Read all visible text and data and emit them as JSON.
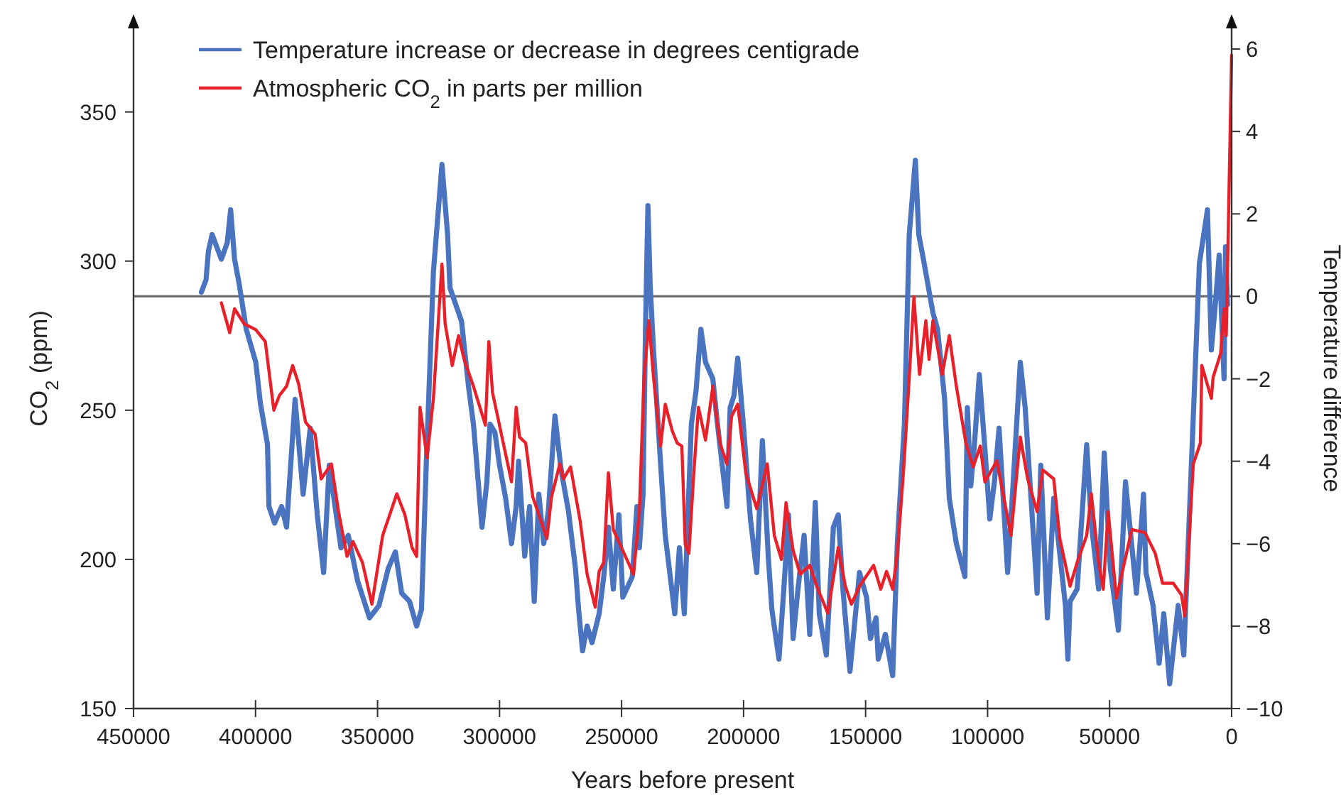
{
  "chart_data": {
    "type": "line",
    "xlabel": "Years before present",
    "ylabel": "CO$_{2}$ (ppm)",
    "y2label": "Temperature difference",
    "xlim": [
      450000,
      0
    ],
    "xticks": [
      450000,
      400000,
      350000,
      300000,
      250000,
      200000,
      150000,
      100000,
      50000,
      0
    ],
    "ylim": [
      150,
      378
    ],
    "yticks": [
      150,
      200,
      250,
      300,
      350
    ],
    "y2lim": [
      -10,
      6.5
    ],
    "y2ticks": [
      {
        "value": -10,
        "label": "−10"
      },
      {
        "value": -8,
        "label": "−8"
      },
      {
        "value": -6,
        "label": "−6"
      },
      {
        "value": -4,
        "label": "−4"
      },
      {
        "value": -2,
        "label": "−2"
      },
      0,
      2,
      4,
      6
    ],
    "legend": "top left",
    "grid": false,
    "marker": "none",
    "line_style": "solid",
    "ref_lines": [
      {
        "axis": "y2",
        "value": 0,
        "color": "#6d6d6d"
      }
    ],
    "series": [
      {
        "name": "Temperature increase or decrease in degrees centigrade",
        "color": "#4a74c0",
        "axis": "y2",
        "x": [
          422200,
          420300,
          419300,
          417800,
          414000,
          411600,
          410200,
          408600,
          406700,
          403800,
          399900,
          398000,
          395100,
          394500,
          392200,
          389300,
          387300,
          383800,
          380500,
          377600,
          374700,
          372100,
          369800,
          365000,
          362000,
          358200,
          353300,
          349400,
          345600,
          342700,
          340100,
          336900,
          334000,
          332000,
          330000,
          327100,
          323600,
          321300,
          320300,
          315600,
          312700,
          310700,
          307200,
          305200,
          303900,
          301900,
          300000,
          297500,
          295100,
          293200,
          292200,
          289700,
          287700,
          285800,
          283900,
          281900,
          280000,
          277300,
          274800,
          271800,
          268900,
          267600,
          266000,
          264100,
          262100,
          259200,
          257300,
          255400,
          253400,
          251100,
          249500,
          245600,
          243700,
          242700,
          241200,
          240200,
          239200,
          238300,
          236900,
          234400,
          232100,
          228200,
          226300,
          224300,
          221400,
          219500,
          217500,
          215600,
          212600,
          210700,
          206800,
          205500,
          203900,
          202400,
          200100,
          197200,
          194600,
          192300,
          189900,
          188400,
          185500,
          183500,
          181600,
          179700,
          177700,
          175200,
          172900,
          170600,
          169000,
          166100,
          163200,
          161200,
          159300,
          156400,
          152500,
          149600,
          148000,
          145700,
          144800,
          141900,
          138900,
          137000,
          134100,
          132100,
          129600,
          128200,
          126300,
          122400,
          120500,
          117600,
          115700,
          112800,
          109300,
          108300,
          106900,
          105400,
          103400,
          101100,
          99100,
          97200,
          95300,
          91800,
          89500,
          86600,
          84600,
          79700,
          78200,
          75500,
          72900,
          68100,
          67100,
          66200,
          63300,
          59400,
          57500,
          54500,
          52200,
          49700,
          46400,
          43500,
          39000,
          36100,
          35100,
          32200,
          29700,
          27800,
          25400,
          21900,
          19600,
          16700,
          13200,
          9900,
          8300,
          6400,
          5100,
          3100,
          2500,
          1700
        ],
        "values": [
          0.1,
          0.4,
          1.1,
          1.5,
          0.9,
          1.3,
          2.1,
          0.9,
          0.3,
          -0.8,
          -1.6,
          -2.6,
          -3.6,
          -5.1,
          -5.5,
          -5.1,
          -5.6,
          -2.5,
          -4.8,
          -3.2,
          -5.3,
          -6.7,
          -4.1,
          -6.1,
          -5.8,
          -6.9,
          -7.8,
          -7.5,
          -6.6,
          -6.2,
          -7.2,
          -7.4,
          -8.0,
          -7.6,
          -4.0,
          0.6,
          3.2,
          1.5,
          0.2,
          -0.6,
          -2.2,
          -3.1,
          -5.6,
          -4.5,
          -3.1,
          -3.3,
          -4.1,
          -4.9,
          -6.0,
          -5.1,
          -4.0,
          -6.3,
          -5.1,
          -7.4,
          -4.8,
          -6.0,
          -5.2,
          -2.9,
          -4.2,
          -5.2,
          -6.6,
          -7.6,
          -8.6,
          -8.0,
          -8.4,
          -7.7,
          -6.8,
          -5.6,
          -7.1,
          -5.3,
          -7.3,
          -6.8,
          -5.1,
          -6.1,
          -4.8,
          -0.8,
          2.2,
          0.3,
          -1.3,
          -3.7,
          -5.8,
          -7.7,
          -6.1,
          -7.7,
          -3.1,
          -2.3,
          -0.8,
          -1.6,
          -2.0,
          -3.1,
          -5.1,
          -2.7,
          -2.4,
          -1.5,
          -3.1,
          -5.4,
          -6.7,
          -3.5,
          -6.3,
          -7.6,
          -8.8,
          -7.1,
          -5.3,
          -8.3,
          -7.1,
          -5.8,
          -8.2,
          -5.0,
          -7.7,
          -8.7,
          -5.6,
          -5.3,
          -7.1,
          -9.1,
          -6.7,
          -7.3,
          -8.3,
          -7.8,
          -8.8,
          -8.2,
          -9.2,
          -6.0,
          -3.1,
          1.5,
          3.3,
          1.5,
          0.9,
          -0.4,
          -0.8,
          -2.5,
          -4.9,
          -6.0,
          -6.8,
          -2.7,
          -4.6,
          -3.6,
          -1.9,
          -3.7,
          -5.4,
          -4.5,
          -3.2,
          -6.7,
          -4.5,
          -1.6,
          -2.7,
          -7.2,
          -4.1,
          -7.8,
          -4.9,
          -7.5,
          -8.8,
          -7.4,
          -7.1,
          -3.6,
          -5.5,
          -7.1,
          -3.8,
          -6.6,
          -8.1,
          -4.5,
          -7.2,
          -4.8,
          -6.7,
          -7.5,
          -8.9,
          -7.7,
          -9.4,
          -7.5,
          -8.7,
          -4.4,
          0.8,
          2.1,
          -1.3,
          0,
          1.0,
          -2.0,
          1.2,
          -0.2
        ]
      },
      {
        "name": "Atmospheric CO$_{2}$ in parts per million",
        "color": "#e8202a",
        "x": [
          414000,
          410600,
          408600,
          404700,
          399900,
          396000,
          392500,
          390200,
          387300,
          384800,
          382400,
          379500,
          375600,
          373100,
          368900,
          366000,
          362500,
          360100,
          356200,
          352300,
          347900,
          342100,
          338800,
          335900,
          334000,
          332600,
          329700,
          327100,
          323600,
          322300,
          319400,
          316800,
          314500,
          310700,
          305800,
          304400,
          302900,
          299000,
          295100,
          293200,
          291800,
          289300,
          286400,
          280600,
          278700,
          275300,
          273800,
          270900,
          267000,
          264100,
          260800,
          259200,
          257300,
          255400,
          253400,
          245100,
          242700,
          240800,
          238800,
          236900,
          234000,
          232100,
          229200,
          227200,
          225300,
          223900,
          222400,
          220400,
          218500,
          215600,
          212600,
          209700,
          206800,
          204900,
          202400,
          199100,
          194600,
          190300,
          187400,
          184500,
          182600,
          179700,
          176800,
          172900,
          170000,
          165500,
          161200,
          158300,
          155800,
          152500,
          146700,
          143800,
          141400,
          138900,
          137000,
          134500,
          132100,
          130200,
          127900,
          125300,
          124000,
          122400,
          118600,
          115700,
          112800,
          108900,
          105900,
          103000,
          101100,
          96200,
          90400,
          86600,
          83600,
          79700,
          77400,
          72900,
          70400,
          66200,
          63300,
          59400,
          57500,
          54500,
          52600,
          50600,
          47200,
          40900,
          35500,
          31300,
          28300,
          23900,
          20500,
          19200,
          15700,
          12800,
          12200,
          8300,
          7600,
          4500,
          3100,
          2200,
          0
        ],
        "values": [
          286,
          276,
          284,
          279,
          277,
          273,
          250,
          255,
          258,
          265,
          259,
          246,
          242,
          227,
          232,
          216,
          201,
          206,
          199,
          185,
          208,
          222,
          215,
          204,
          201,
          251,
          234,
          254,
          299,
          279,
          265,
          275,
          267,
          258,
          245,
          273,
          256,
          241,
          226,
          251,
          241,
          239,
          221,
          207,
          221,
          232,
          227,
          231,
          213,
          195,
          184,
          196,
          199,
          229,
          210,
          195,
          216,
          261,
          280,
          261,
          238,
          252,
          243,
          239,
          238,
          205,
          202,
          229,
          251,
          240,
          258,
          239,
          232,
          248,
          252,
          229,
          217,
          232,
          208,
          200,
          219,
          203,
          195,
          198,
          191,
          182,
          204,
          191,
          185,
          191,
          198,
          190,
          196,
          190,
          202,
          229,
          261,
          288,
          262,
          280,
          267,
          280,
          262,
          275,
          258,
          239,
          231,
          238,
          226,
          233,
          208,
          241,
          227,
          216,
          230,
          227,
          207,
          191,
          199,
          208,
          222,
          199,
          190,
          216,
          187,
          210,
          209,
          202,
          192,
          192,
          188,
          181,
          232,
          239,
          265,
          254,
          261,
          269,
          284,
          275,
          369
        ]
      }
    ]
  }
}
